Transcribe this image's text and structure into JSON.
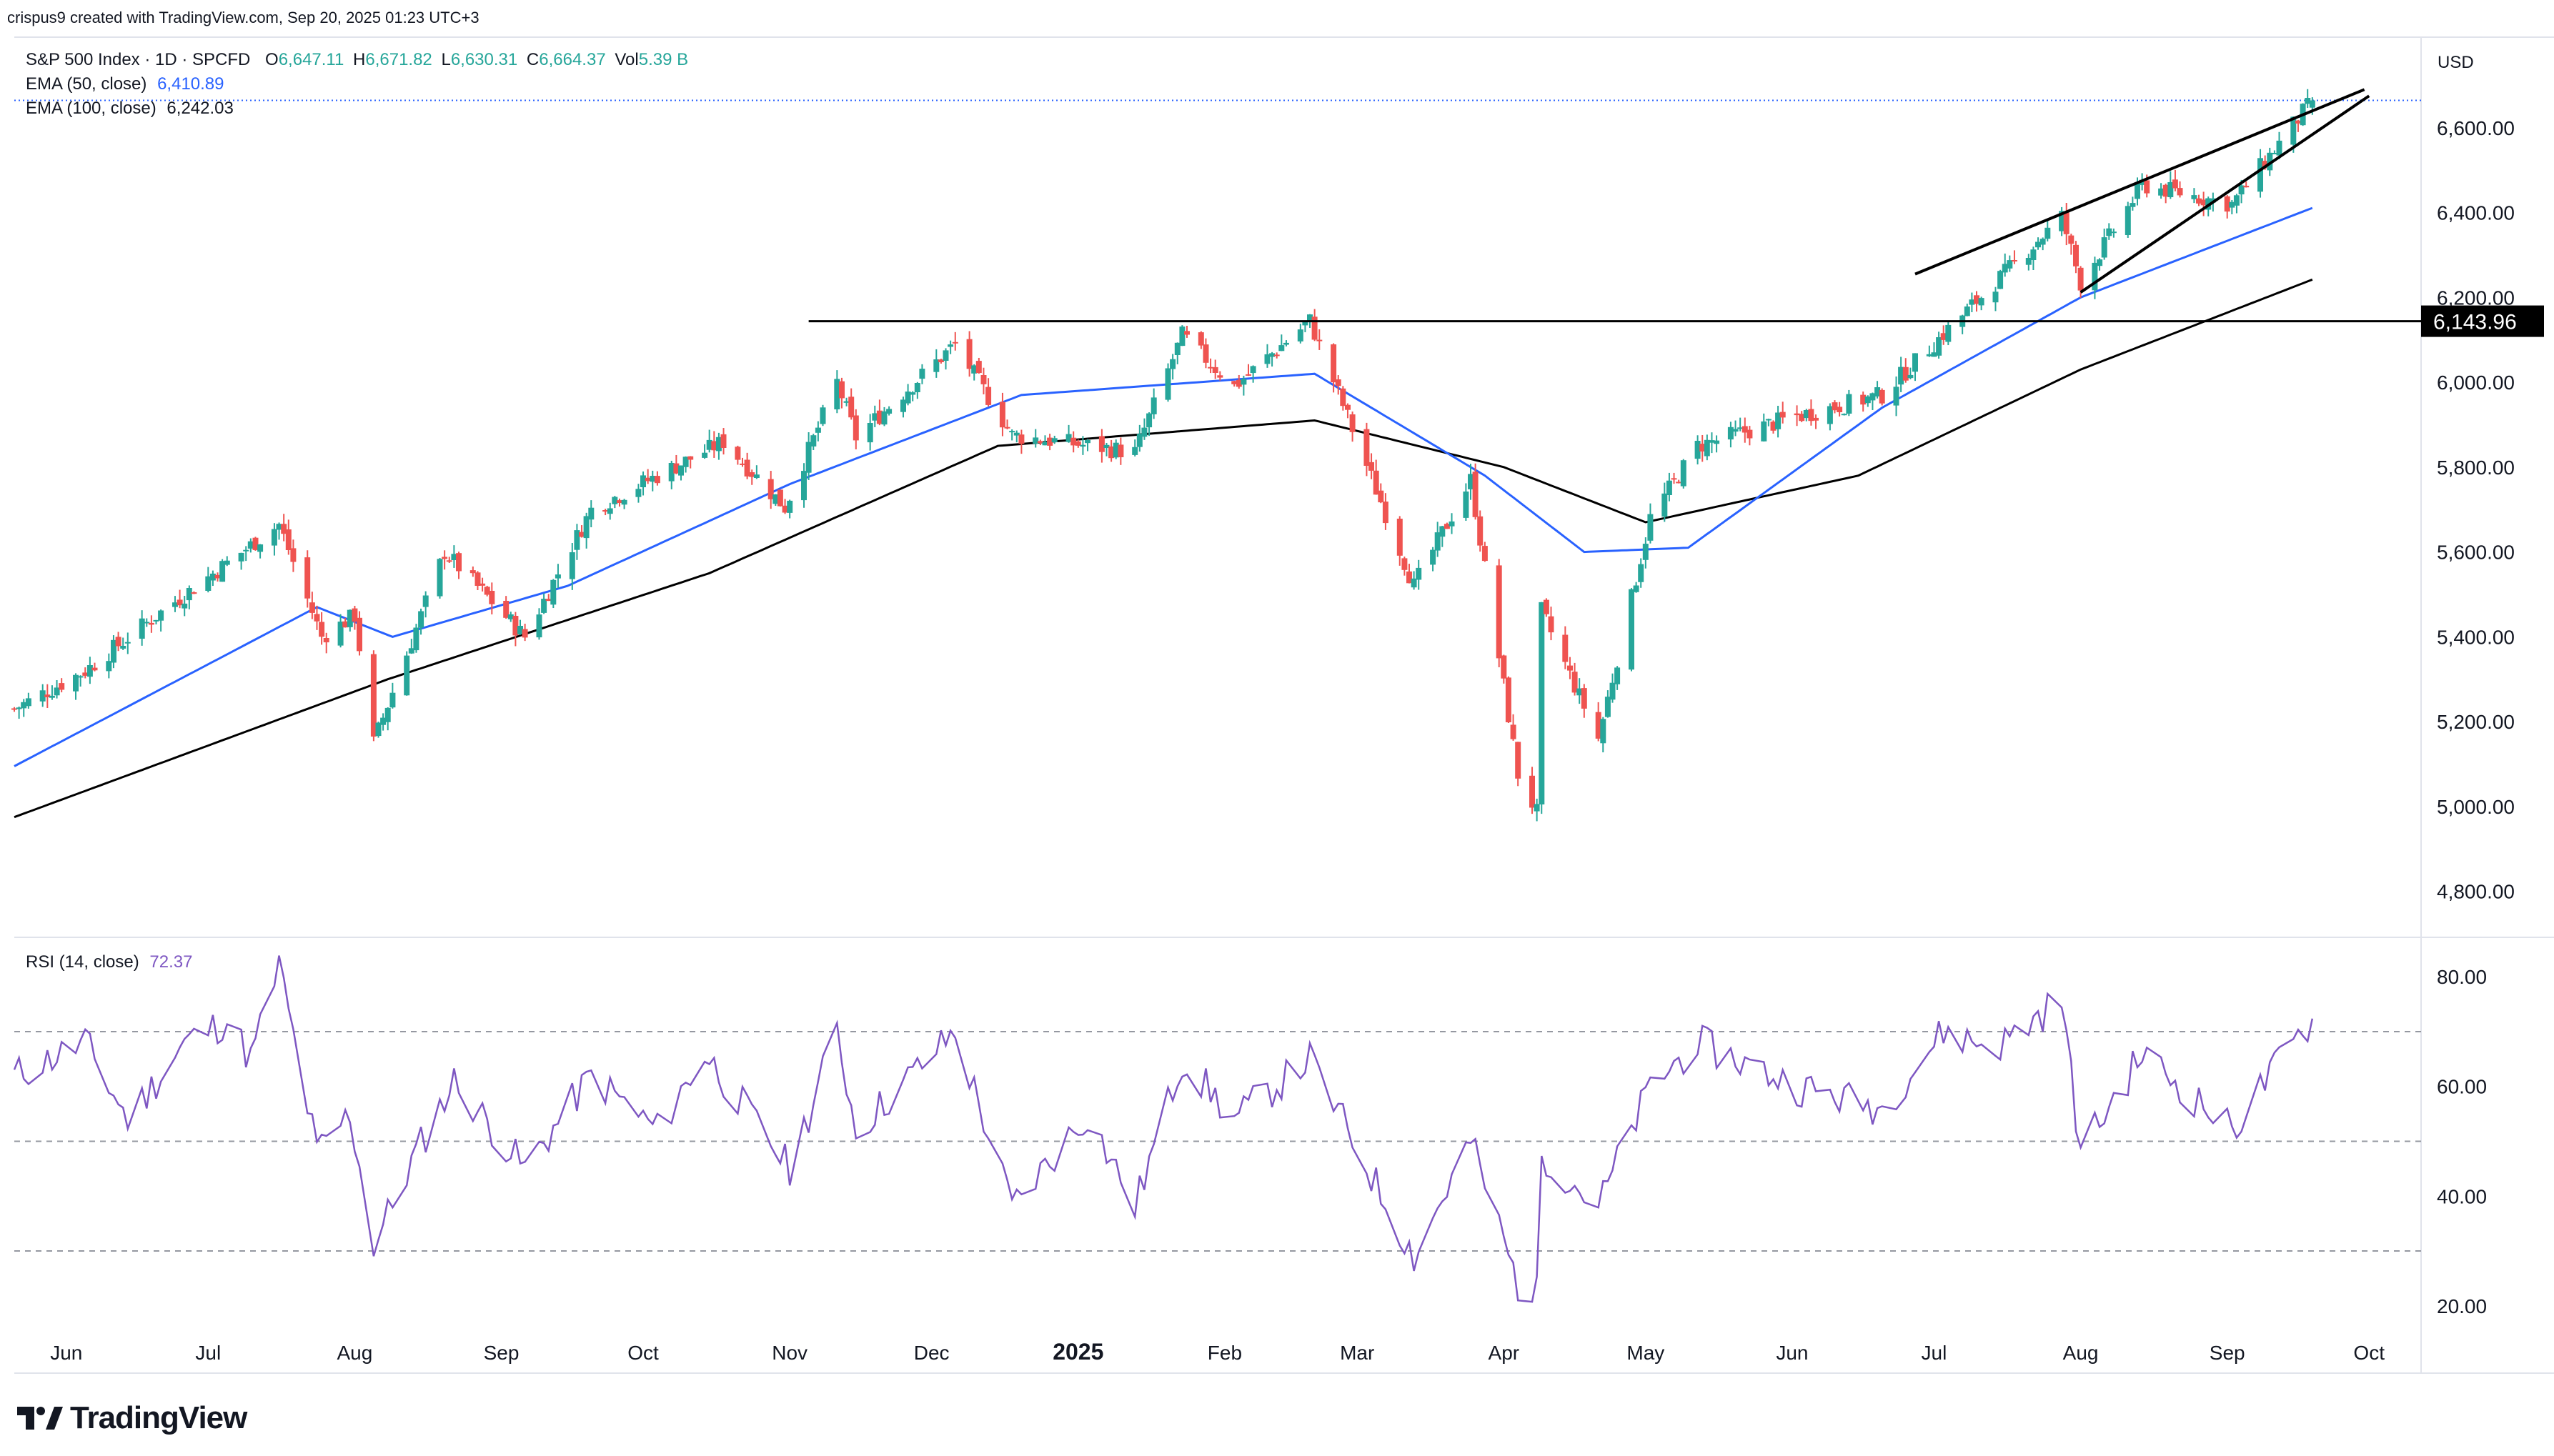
{
  "header": {
    "created_line": "crispus9 created with TradingView.com, Sep 20, 2025 01:23 UTC+3",
    "symbol": "S&P 500 Index · 1D · SPCFD",
    "ohlc": {
      "o_label": "O",
      "o_value": "6,647.11",
      "h_label": "H",
      "h_value": "6,671.82",
      "l_label": "L",
      "l_value": "6,630.31",
      "c_label": "C",
      "c_value": "6,664.37",
      "vol_label": "Vol",
      "vol_value": "5.39 B"
    },
    "ema50_label": "EMA (50, close)",
    "ema50_value": "6,410.89",
    "ema100_label": "EMA (100, close)",
    "ema100_value": "6,242.03",
    "rsi_label": "RSI (14, close)",
    "rsi_value": "72.37",
    "currency": "USD"
  },
  "branding": {
    "logo_text": "TradingView"
  },
  "colors": {
    "up": "#26a69a",
    "down": "#ef5350",
    "ema50": "#2962ff",
    "ema100": "#000000",
    "rsi": "#7e57c2",
    "text": "#131722",
    "grid_dash": "#9598a1",
    "price_line": "#2962ff"
  },
  "chart_data": [
    {
      "type": "candlestick",
      "title": "S&P 500 Index · 1D · SPCFD",
      "x_ticks": [
        {
          "label": "Jun",
          "date": "2024-06-01"
        },
        {
          "label": "Jul",
          "date": "2024-07-01"
        },
        {
          "label": "Aug",
          "date": "2024-08-01"
        },
        {
          "label": "Sep",
          "date": "2024-09-01"
        },
        {
          "label": "Oct",
          "date": "2024-10-01"
        },
        {
          "label": "Nov",
          "date": "2024-11-01"
        },
        {
          "label": "Dec",
          "date": "2024-12-01"
        },
        {
          "label": "2025",
          "date": "2025-01-01",
          "bold": true
        },
        {
          "label": "Feb",
          "date": "2025-02-01"
        },
        {
          "label": "Mar",
          "date": "2025-03-01"
        },
        {
          "label": "Apr",
          "date": "2025-04-01"
        },
        {
          "label": "May",
          "date": "2025-05-01"
        },
        {
          "label": "Jun",
          "date": "2025-06-01"
        },
        {
          "label": "Jul",
          "date": "2025-07-01"
        },
        {
          "label": "Aug",
          "date": "2025-08-01"
        },
        {
          "label": "Sep",
          "date": "2025-09-01"
        },
        {
          "label": "Oct",
          "date": "2025-10-01"
        }
      ],
      "y_ticks": [
        "4,800.00",
        "5,000.00",
        "5,200.00",
        "5,400.00",
        "5,600.00",
        "5,800.00",
        "6,000.00",
        "6,200.00",
        "6,400.00",
        "6,600.00"
      ],
      "y_tick_values": [
        4800,
        5000,
        5200,
        5400,
        5600,
        5800,
        6000,
        6200,
        6400,
        6600
      ],
      "ylim": [
        4695,
        6800
      ],
      "xlim": [
        "2024-05-21",
        "2025-10-12"
      ],
      "last_close": 6664.37,
      "horizontal_level": {
        "value": 6143.96,
        "label": "6,143.96",
        "from": "2024-11-05"
      },
      "trendlines": [
        {
          "from": {
            "date": "2025-06-27",
            "value": 6255
          },
          "to": {
            "date": "2025-09-30",
            "value": 6690
          }
        },
        {
          "from": {
            "date": "2025-08-01",
            "value": 6212
          },
          "to": {
            "date": "2025-10-01",
            "value": 6675
          }
        }
      ],
      "price_anchors": [
        [
          "2024-05-21",
          5230
        ],
        [
          "2024-06-05",
          5320
        ],
        [
          "2024-06-20",
          5450
        ],
        [
          "2024-07-16",
          5665
        ],
        [
          "2024-07-25",
          5400
        ],
        [
          "2024-08-01",
          5450
        ],
        [
          "2024-08-05",
          5150
        ],
        [
          "2024-08-20",
          5600
        ],
        [
          "2024-09-06",
          5400
        ],
        [
          "2024-09-20",
          5700
        ],
        [
          "2024-10-18",
          5860
        ],
        [
          "2024-10-31",
          5705
        ],
        [
          "2024-11-11",
          6000
        ],
        [
          "2024-11-15",
          5870
        ],
        [
          "2024-12-06",
          6090
        ],
        [
          "2024-12-18",
          5875
        ],
        [
          "2025-01-13",
          5835
        ],
        [
          "2025-01-23",
          6110
        ],
        [
          "2025-02-03",
          5990
        ],
        [
          "2025-02-19",
          6145
        ],
        [
          "2025-03-13",
          5520
        ],
        [
          "2025-03-25",
          5770
        ],
        [
          "2025-04-04",
          5075
        ],
        [
          "2025-04-08",
          4985
        ],
        [
          "2025-04-09",
          5460
        ],
        [
          "2025-04-21",
          5160
        ],
        [
          "2025-05-02",
          5680
        ],
        [
          "2025-05-12",
          5850
        ],
        [
          "2025-06-02",
          5920
        ],
        [
          "2025-06-20",
          5970
        ],
        [
          "2025-07-28",
          6390
        ],
        [
          "2025-08-01",
          6235
        ],
        [
          "2025-08-14",
          6465
        ],
        [
          "2025-09-02",
          6420
        ],
        [
          "2025-09-19",
          6664
        ]
      ],
      "ema50_anchors": [
        [
          "2024-05-21",
          5095
        ],
        [
          "2024-07-24",
          5470
        ],
        [
          "2024-08-09",
          5400
        ],
        [
          "2024-09-15",
          5520
        ],
        [
          "2024-11-01",
          5760
        ],
        [
          "2024-12-20",
          5970
        ],
        [
          "2025-02-20",
          6020
        ],
        [
          "2025-03-28",
          5780
        ],
        [
          "2025-04-18",
          5600
        ],
        [
          "2025-05-10",
          5610
        ],
        [
          "2025-06-20",
          5940
        ],
        [
          "2025-08-01",
          6200
        ],
        [
          "2025-09-19",
          6410.89
        ]
      ],
      "ema100_anchors": [
        [
          "2024-05-21",
          4975
        ],
        [
          "2024-08-08",
          5300
        ],
        [
          "2024-10-15",
          5550
        ],
        [
          "2024-12-15",
          5850
        ],
        [
          "2025-02-20",
          5910
        ],
        [
          "2025-04-01",
          5800
        ],
        [
          "2025-05-01",
          5670
        ],
        [
          "2025-06-15",
          5780
        ],
        [
          "2025-08-01",
          6030
        ],
        [
          "2025-09-19",
          6242.03
        ]
      ]
    },
    {
      "type": "line",
      "title": "RSI (14, close)",
      "y_ticks": [
        "20.00",
        "40.00",
        "60.00",
        "80.00"
      ],
      "y_tick_values": [
        20,
        40,
        60,
        80
      ],
      "ylim": [
        14.5,
        85.5
      ],
      "levels": [
        30,
        50,
        70
      ],
      "last_value": 72.37,
      "anchors": [
        [
          "2024-05-21",
          62
        ],
        [
          "2024-06-05",
          68
        ],
        [
          "2024-06-14",
          54
        ],
        [
          "2024-06-26",
          68
        ],
        [
          "2024-07-05",
          72
        ],
        [
          "2024-07-10",
          65
        ],
        [
          "2024-07-16",
          82
        ],
        [
          "2024-07-24",
          48
        ],
        [
          "2024-07-31",
          55
        ],
        [
          "2024-08-05",
          31
        ],
        [
          "2024-08-14",
          48
        ],
        [
          "2024-08-22",
          61
        ],
        [
          "2024-09-06",
          45
        ],
        [
          "2024-09-20",
          62
        ],
        [
          "2024-10-04",
          52
        ],
        [
          "2024-10-14",
          66
        ],
        [
          "2024-11-01",
          45
        ],
        [
          "2024-11-11",
          70
        ],
        [
          "2024-11-15",
          52
        ],
        [
          "2024-12-06",
          70
        ],
        [
          "2024-12-18",
          38
        ],
        [
          "2025-01-03",
          55
        ],
        [
          "2025-01-13",
          38
        ],
        [
          "2025-01-23",
          65
        ],
        [
          "2025-02-03",
          54
        ],
        [
          "2025-02-19",
          65
        ],
        [
          "2025-03-10",
          34
        ],
        [
          "2025-03-13",
          29
        ],
        [
          "2025-03-25",
          50
        ],
        [
          "2025-04-04",
          24
        ],
        [
          "2025-04-08",
          22
        ],
        [
          "2025-04-09",
          48
        ],
        [
          "2025-04-21",
          38
        ],
        [
          "2025-05-02",
          60
        ],
        [
          "2025-05-12",
          68
        ],
        [
          "2025-06-02",
          60
        ],
        [
          "2025-06-20",
          56
        ],
        [
          "2025-07-03",
          70
        ],
        [
          "2025-07-14",
          67
        ],
        [
          "2025-07-28",
          76
        ],
        [
          "2025-08-01",
          48
        ],
        [
          "2025-08-14",
          66
        ],
        [
          "2025-09-02",
          52
        ],
        [
          "2025-09-10",
          62
        ],
        [
          "2025-09-19",
          72.37
        ]
      ]
    }
  ]
}
